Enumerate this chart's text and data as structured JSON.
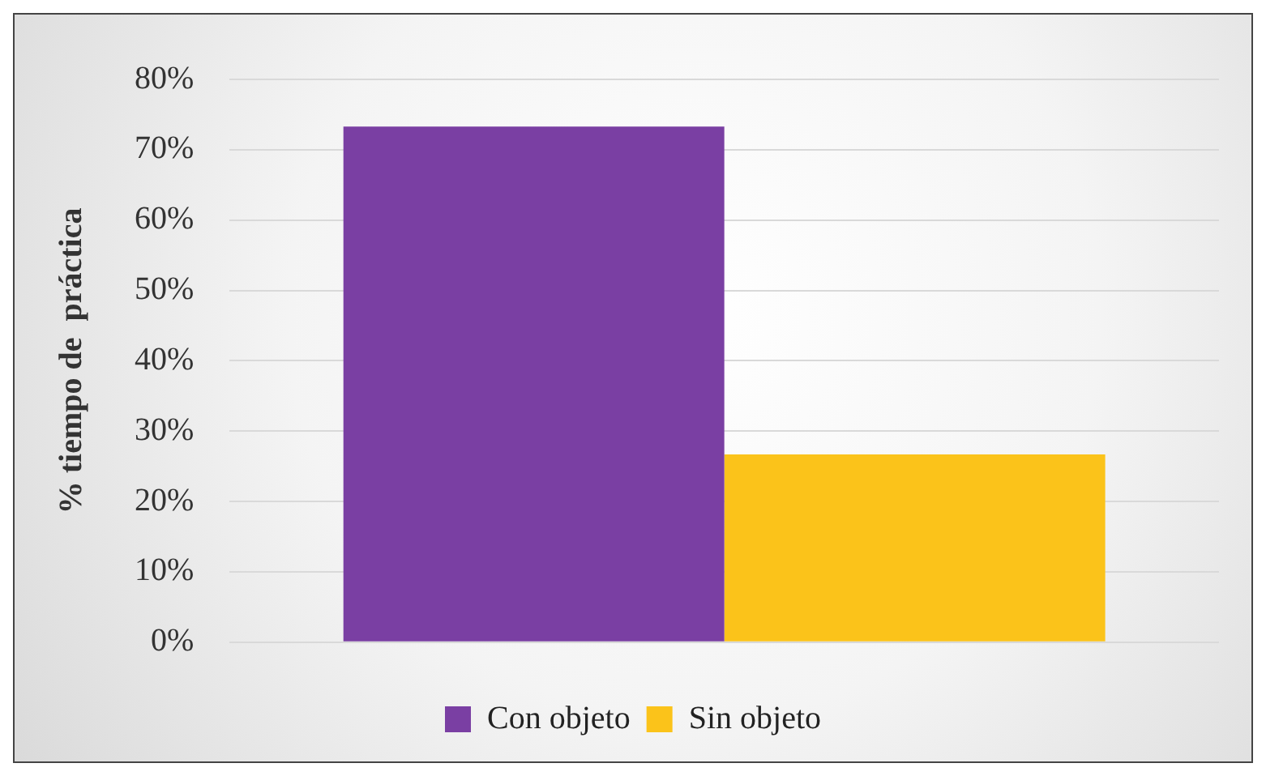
{
  "chart_data": {
    "type": "bar",
    "ylabel": "% tiempo de  práctica",
    "categories": [
      null
    ],
    "series": [
      {
        "name": "Con objeto",
        "color": "#7a3fa3",
        "values": [
          73.3
        ]
      },
      {
        "name": "Sin objeto",
        "color": "#fbc31a",
        "values": [
          26.7
        ]
      }
    ],
    "ylim": [
      0,
      80
    ],
    "yticks": [
      {
        "value": 0,
        "label": "0%"
      },
      {
        "value": 10,
        "label": "10%"
      },
      {
        "value": 20,
        "label": "20%"
      },
      {
        "value": 30,
        "label": "30%"
      },
      {
        "value": 40,
        "label": "40%"
      },
      {
        "value": 50,
        "label": "50%"
      },
      {
        "value": 60,
        "label": "60%"
      },
      {
        "value": 70,
        "label": "70%"
      },
      {
        "value": 80,
        "label": "80%"
      }
    ],
    "grid": "y",
    "legend": "bottom"
  }
}
